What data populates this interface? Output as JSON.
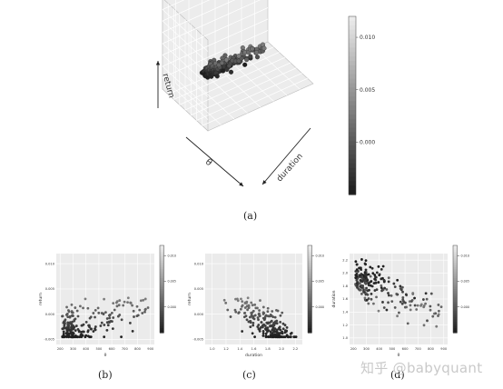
{
  "captions": {
    "a": "(a)",
    "b": "(b)",
    "c": "(c)",
    "d": "(d)"
  },
  "watermark": "知乎 @babyquant",
  "colors": {
    "background": "#ffffff",
    "panel": "#ebebeb",
    "grid": "#ffffff",
    "cube_wall": "#ececec"
  },
  "chart_data": [
    {
      "id": "a",
      "type": "scatter",
      "projection": "3d",
      "axis_labels": {
        "x": "θ",
        "y": "duration",
        "z": "return"
      },
      "colorbar": {
        "ticks": [
          "0.010",
          "0.005",
          "0.000"
        ],
        "tick_values": [
          0.01,
          0.005,
          0.0
        ],
        "range": [
          -0.005,
          0.012
        ],
        "colormap": "greyscale"
      },
      "n_points": 230,
      "note": "point cloud centered near the middle of the cube"
    },
    {
      "id": "b",
      "type": "scatter",
      "xlabel": "θ",
      "ylabel": "return",
      "xticks": [
        "200",
        "300",
        "400",
        "500",
        "600",
        "700",
        "800",
        "900"
      ],
      "xlim": [
        170,
        930
      ],
      "yticks": [
        "-0.005",
        "0.000",
        "0.005",
        "0.010"
      ],
      "ylim": [
        -0.006,
        0.012
      ],
      "colorbar": {
        "ticks": [
          "0.010",
          "0.005",
          "0.000"
        ],
        "tick_values": [
          0.01,
          0.005,
          0.0
        ],
        "range": [
          -0.005,
          0.012
        ]
      },
      "trend": "return rises with θ; dense cluster at θ≈200–300",
      "n_points": 230
    },
    {
      "id": "c",
      "type": "scatter",
      "xlabel": "duration",
      "ylabel": "return",
      "xticks": [
        "1.0",
        "1.2",
        "1.4",
        "1.6",
        "1.8",
        "2.0",
        "2.2"
      ],
      "xlim": [
        0.9,
        2.3
      ],
      "yticks": [
        "-0.005",
        "0.000",
        "0.005",
        "0.010"
      ],
      "ylim": [
        -0.006,
        0.012
      ],
      "colorbar": {
        "ticks": [
          "0.010",
          "0.005",
          "0.000"
        ],
        "tick_values": [
          0.01,
          0.005,
          0.0
        ],
        "range": [
          -0.005,
          0.012
        ]
      },
      "trend": "return falls as duration increases",
      "n_points": 230
    },
    {
      "id": "d",
      "type": "scatter",
      "xlabel": "θ",
      "ylabel": "duration",
      "xticks": [
        "200",
        "300",
        "400",
        "500",
        "600",
        "700",
        "800",
        "900"
      ],
      "xlim": [
        170,
        930
      ],
      "yticks": [
        "1.0",
        "1.2",
        "1.4",
        "1.6",
        "1.8",
        "2.0",
        "2.2"
      ],
      "ylim": [
        0.9,
        2.3
      ],
      "colorbar": {
        "ticks": [
          "0.010",
          "0.005",
          "0.000"
        ],
        "tick_values": [
          0.01,
          0.005,
          0.0
        ],
        "range": [
          -0.005,
          0.012
        ]
      },
      "trend": "duration falls as θ increases",
      "n_points": 230
    }
  ]
}
